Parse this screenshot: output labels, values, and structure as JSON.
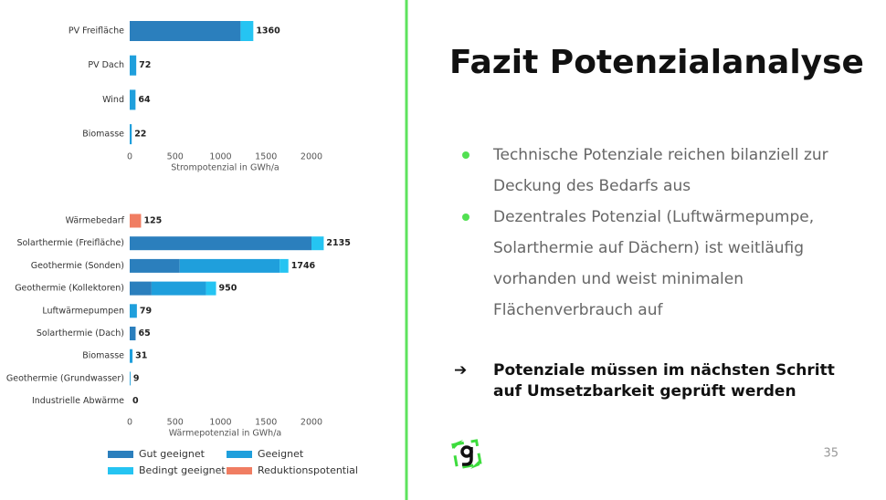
{
  "slide_title": "Fazit Potenzialanalyse",
  "bullets": [
    [
      "Technische Potenziale reichen bilanziell zur",
      "Deckung des Bedarfs aus"
    ],
    [
      "Dezentrales Potenzial (Luftwärmepumpe,",
      "Solarthermie auf Dächern) ist weitläufig",
      "vorhanden und weist minimalen",
      "Flächenverbrauch auf"
    ]
  ],
  "conclusion": [
    "Potenziale müssen im nächsten Schritt",
    "auf Umsetzbarkeit geprüft werden"
  ],
  "page_number": "35",
  "legend": [
    {
      "name": "Gut geeignet",
      "color": "#2b7fbd"
    },
    {
      "name": "Geeignet",
      "color": "#1f9fdc"
    },
    {
      "name": "Bedingt geeignet",
      "color": "#25c4f2"
    },
    {
      "name": "Reduktionspotential",
      "color": "#f07d62"
    }
  ],
  "chart_data": [
    {
      "type": "bar",
      "orientation": "horizontal",
      "stacked": true,
      "categories": [
        "PV Freifläche",
        "PV Dach",
        "Wind",
        "Biomasse"
      ],
      "series": [
        {
          "values": [
            1220,
            0,
            0,
            0
          ]
        },
        {
          "values": [
            0,
            72,
            64,
            22
          ]
        },
        {
          "values": [
            140,
            0,
            0,
            0
          ]
        },
        {
          "values": [
            0,
            0,
            0,
            0
          ]
        }
      ],
      "totals": [
        1360,
        72,
        64,
        22
      ],
      "xlabel": "Strompotenzial in GWh/a",
      "xlim": [
        0,
        2000
      ],
      "xticks": [
        0,
        500,
        1000,
        1500,
        2000
      ]
    },
    {
      "type": "bar",
      "orientation": "horizontal",
      "stacked": true,
      "categories": [
        "Wärmebedarf",
        "Solarthermie (Freifläche)",
        "Geothermie (Sonden)",
        "Geothermie (Kollektoren)",
        "Luftwärmepumpen",
        "Solarthermie (Dach)",
        "Biomasse",
        "Geothermie (Grundwasser)",
        "Industrielle Abwärme"
      ],
      "series": [
        {
          "values": [
            0,
            2000,
            550,
            240,
            0,
            65,
            0,
            0,
            0
          ]
        },
        {
          "values": [
            0,
            0,
            1100,
            600,
            79,
            0,
            31,
            9,
            0
          ]
        },
        {
          "values": [
            0,
            135,
            96,
            110,
            0,
            0,
            0,
            0,
            0
          ]
        },
        {
          "values": [
            125,
            0,
            0,
            0,
            0,
            0,
            0,
            0,
            0
          ]
        }
      ],
      "totals": [
        125,
        2135,
        1746,
        950,
        79,
        65,
        31,
        9,
        0
      ],
      "xlabel": "Wärmepotenzial in GWh/a",
      "xlim": [
        0,
        2000
      ],
      "xticks": [
        0,
        500,
        1000,
        1500,
        2000
      ]
    }
  ]
}
